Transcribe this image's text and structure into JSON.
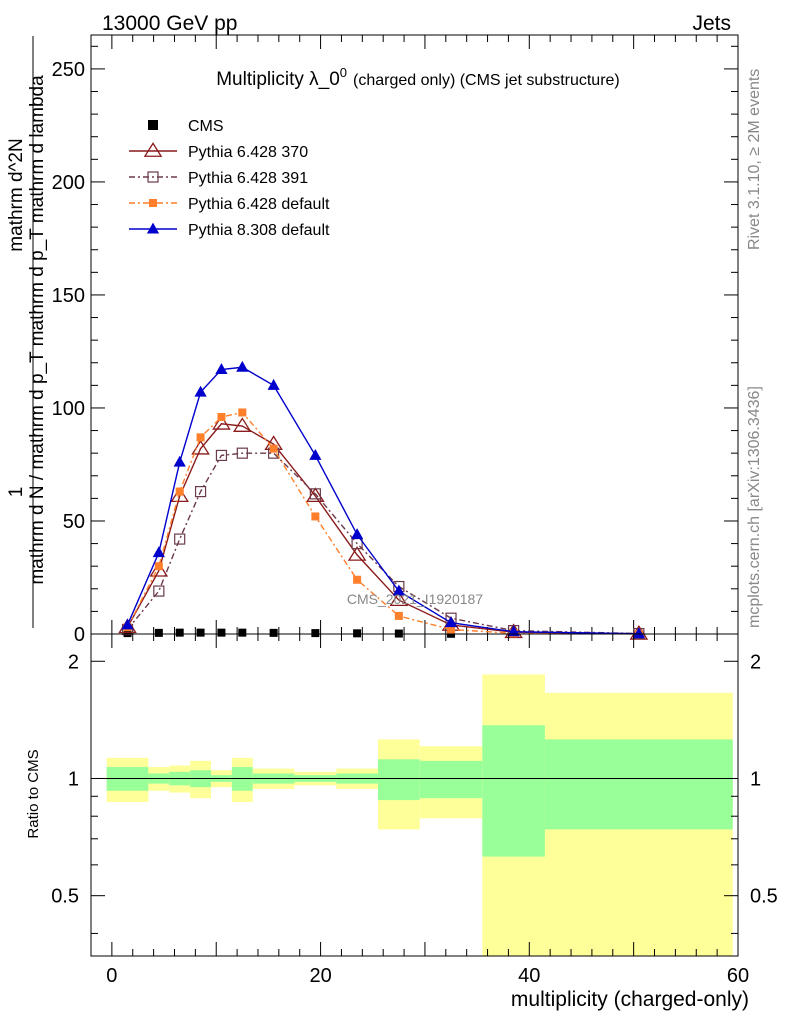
{
  "header": {
    "left": "13000 GeV pp",
    "right": "Jets"
  },
  "side_labels": {
    "rivet": "Rivet 3.1.10, ≥ 2M events",
    "mcplots": "mcplots.cern.ch [arXiv:1306.3436]"
  },
  "watermark": "CMS_2021_I1920187",
  "chart_data": [
    {
      "type": "line",
      "title": "Multiplicity λ_0^0 (charged only) (CMS jet substructure)",
      "title_main": "Multiplicity λ_0",
      "title_sup": "0",
      "title_rest": "(charged only) (CMS jet substructure)",
      "ylabel_numerator": "1",
      "ylabel_denominator": "mathrm d N / mathrm d p_T mathrm d p_T mathrm d lambda",
      "ylabel_right": "mathrm d^2N",
      "xlim": [
        -2,
        60
      ],
      "ylim": [
        0,
        265
      ],
      "yticks": [
        0,
        50,
        100,
        150,
        200,
        250
      ],
      "legend_position": "top-left",
      "series": [
        {
          "name": "CMS",
          "color": "#000000",
          "marker": "square-filled",
          "x": [
            1.5,
            4.5,
            6.5,
            8.5,
            10.5,
            12.5,
            15.5,
            19.5,
            23.5,
            27.5,
            32.5,
            38.5,
            50.5
          ],
          "y": [
            0.4,
            0.5,
            0.6,
            0.6,
            0.6,
            0.6,
            0.5,
            0.4,
            0.3,
            0.2,
            0.1,
            0.05,
            0.02
          ]
        },
        {
          "name": "Pythia 6.428 370",
          "color": "#8b1a1a",
          "marker": "triangle-open",
          "dash": "",
          "x": [
            1.5,
            4.5,
            6.5,
            8.5,
            10.5,
            12.5,
            15.5,
            19.5,
            23.5,
            27.5,
            32.5,
            38.5,
            50.5
          ],
          "y": [
            3,
            28,
            61,
            82,
            93,
            92,
            84,
            61,
            35,
            15,
            4,
            0.8,
            0.1
          ]
        },
        {
          "name": "Pythia 6.428 391",
          "color": "#6b3a4a",
          "marker": "square-open",
          "dash": "6,3,2,3",
          "x": [
            1.5,
            4.5,
            6.5,
            8.5,
            10.5,
            12.5,
            15.5,
            19.5,
            23.5,
            27.5,
            32.5,
            38.5,
            50.5
          ],
          "y": [
            2,
            19,
            42,
            63,
            79,
            80,
            80,
            62,
            40,
            21,
            7,
            1.5,
            0.2
          ]
        },
        {
          "name": "Pythia 6.428 default",
          "color": "#ff7f2a",
          "marker": "square-filled",
          "dash": "6,3,2,3",
          "x": [
            1.5,
            4.5,
            6.5,
            8.5,
            10.5,
            12.5,
            15.5,
            19.5,
            23.5,
            27.5,
            32.5,
            38.5,
            50.5
          ],
          "y": [
            3,
            30,
            63,
            87,
            96,
            98,
            82,
            52,
            24,
            8,
            2,
            0.3,
            0.02
          ]
        },
        {
          "name": "Pythia 8.308 default",
          "color": "#0000cc",
          "marker": "triangle-filled",
          "dash": "",
          "x": [
            1.5,
            4.5,
            6.5,
            8.5,
            10.5,
            12.5,
            15.5,
            19.5,
            23.5,
            27.5,
            32.5,
            38.5,
            50.5
          ],
          "y": [
            4,
            36,
            76,
            107,
            117,
            118,
            110,
            79,
            44,
            19,
            5,
            1,
            0.1
          ]
        }
      ]
    },
    {
      "type": "area",
      "ylabel": "Ratio to CMS",
      "xlabel": "multiplicity (charged-only)",
      "xlim": [
        -2,
        60
      ],
      "ylim": [
        0.35,
        2.35
      ],
      "xticks": [
        0,
        20,
        40,
        60
      ],
      "yticks": [
        0.5,
        1,
        2
      ],
      "reference_line": 1,
      "bins": [
        {
          "lo": -0.5,
          "hi": 3.5,
          "inner": [
            0.93,
            1.07
          ],
          "outer": [
            0.87,
            1.13
          ]
        },
        {
          "lo": 3.5,
          "hi": 5.5,
          "inner": [
            0.97,
            1.03
          ],
          "outer": [
            0.93,
            1.07
          ]
        },
        {
          "lo": 5.5,
          "hi": 7.5,
          "inner": [
            0.96,
            1.04
          ],
          "outer": [
            0.92,
            1.08
          ]
        },
        {
          "lo": 7.5,
          "hi": 9.5,
          "inner": [
            0.95,
            1.05
          ],
          "outer": [
            0.89,
            1.11
          ]
        },
        {
          "lo": 9.5,
          "hi": 11.5,
          "inner": [
            0.98,
            1.02
          ],
          "outer": [
            0.95,
            1.05
          ]
        },
        {
          "lo": 11.5,
          "hi": 13.5,
          "inner": [
            0.93,
            1.07
          ],
          "outer": [
            0.87,
            1.13
          ]
        },
        {
          "lo": 13.5,
          "hi": 17.5,
          "inner": [
            0.97,
            1.03
          ],
          "outer": [
            0.94,
            1.06
          ]
        },
        {
          "lo": 17.5,
          "hi": 21.5,
          "inner": [
            0.98,
            1.02
          ],
          "outer": [
            0.96,
            1.04
          ]
        },
        {
          "lo": 21.5,
          "hi": 25.5,
          "inner": [
            0.97,
            1.03
          ],
          "outer": [
            0.94,
            1.06
          ]
        },
        {
          "lo": 25.5,
          "hi": 29.5,
          "inner": [
            0.88,
            1.12
          ],
          "outer": [
            0.74,
            1.26
          ]
        },
        {
          "lo": 29.5,
          "hi": 35.5,
          "inner": [
            0.89,
            1.11
          ],
          "outer": [
            0.79,
            1.21
          ]
        },
        {
          "lo": 35.5,
          "hi": 41.5,
          "inner": [
            0.63,
            1.37
          ],
          "outer": [
            0.35,
            1.85
          ]
        },
        {
          "lo": 41.5,
          "hi": 59.5,
          "inner": [
            0.74,
            1.26
          ],
          "outer": [
            0.35,
            1.66
          ]
        }
      ],
      "inner_color": "#99ff99",
      "outer_color": "#ffff99"
    }
  ]
}
